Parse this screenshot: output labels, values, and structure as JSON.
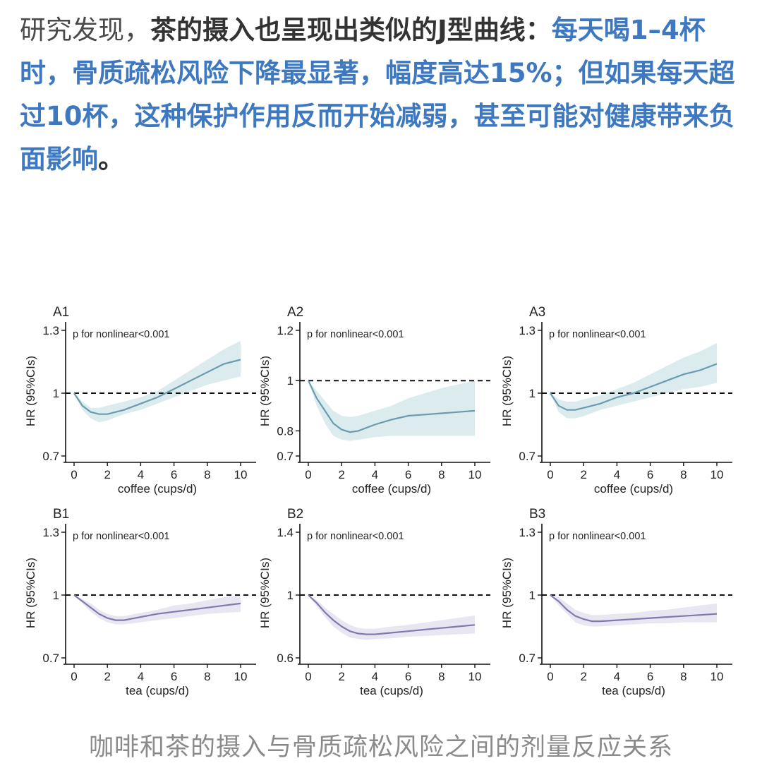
{
  "article": {
    "segments": [
      {
        "text": "研究发现，",
        "style": "normal"
      },
      {
        "text": "茶的摄入也呈现出类似的J型曲线：",
        "style": "bold"
      },
      {
        "text": "每天喝1–4杯时，骨质疏松风险下降最显著，幅度高达15%；但如果每天超过10杯，这种保护作用反而开始减弱，甚至可能对健康带来负面影响",
        "style": "blue"
      },
      {
        "text": "。",
        "style": "bold"
      }
    ]
  },
  "caption": "咖啡和茶的摄入与骨质疏松风险之间的剂量反应关系",
  "colors": {
    "coffee_line": "#6a9bb0",
    "coffee_band": "#dcecee",
    "tea_line": "#8377ad",
    "tea_band": "#e8e6f1",
    "text_blue": "#3d78c1"
  },
  "chart_data": [
    {
      "panel_label": "A1",
      "type": "line",
      "annotation": "p for nonlinear<0.001",
      "xlabel": "coffee (cups/d)",
      "ylabel": "HR (95%CIs)",
      "xticks": [
        "0",
        "2",
        "4",
        "6",
        "8",
        "10"
      ],
      "yticks": [
        "0.7",
        "1",
        "1.3"
      ],
      "xlim": [
        0,
        10
      ],
      "ylim": [
        0.7,
        1.3
      ],
      "reference_line": 1,
      "x": [
        0,
        0.5,
        1,
        1.5,
        2,
        3,
        4,
        5,
        6,
        7,
        8,
        9,
        10
      ],
      "series": [
        {
          "values": [
            1.0,
            0.94,
            0.91,
            0.9,
            0.9,
            0.92,
            0.95,
            0.98,
            1.02,
            1.06,
            1.1,
            1.14,
            1.16
          ],
          "lower": [
            1.0,
            0.92,
            0.88,
            0.86,
            0.87,
            0.9,
            0.92,
            0.95,
            0.98,
            1.01,
            1.04,
            1.06,
            1.08
          ],
          "upper": [
            1.0,
            0.96,
            0.93,
            0.93,
            0.94,
            0.96,
            0.98,
            1.01,
            1.06,
            1.11,
            1.16,
            1.21,
            1.25
          ]
        }
      ]
    },
    {
      "panel_label": "A2",
      "type": "line",
      "annotation": "p for nonlinear<0.001",
      "xlabel": "coffee (cups/d)",
      "ylabel": "HR (95%CIs)",
      "xticks": [
        "0",
        "2",
        "4",
        "6",
        "8",
        "10"
      ],
      "yticks": [
        "0.7",
        "0.8",
        "1",
        "1.2"
      ],
      "xlim": [
        0,
        10
      ],
      "ylim": [
        0.7,
        1.2
      ],
      "reference_line": 1,
      "x": [
        0,
        0.5,
        1,
        1.5,
        2,
        2.5,
        3,
        4,
        5,
        6,
        7,
        8,
        9,
        10
      ],
      "series": [
        {
          "values": [
            1.0,
            0.93,
            0.88,
            0.83,
            0.805,
            0.795,
            0.8,
            0.825,
            0.845,
            0.86,
            0.865,
            0.87,
            0.875,
            0.88
          ],
          "lower": [
            1.0,
            0.9,
            0.83,
            0.78,
            0.765,
            0.76,
            0.765,
            0.775,
            0.78,
            0.78,
            0.78,
            0.78,
            0.78,
            0.78
          ],
          "upper": [
            1.0,
            0.96,
            0.92,
            0.88,
            0.86,
            0.855,
            0.86,
            0.88,
            0.9,
            0.93,
            0.95,
            0.97,
            0.985,
            1.0
          ]
        }
      ]
    },
    {
      "panel_label": "A3",
      "type": "line",
      "annotation": "p for nonlinear<0.001",
      "xlabel": "coffee (cups/d)",
      "ylabel": "HR (95%CIs)",
      "xticks": [
        "0",
        "2",
        "4",
        "6",
        "8",
        "10"
      ],
      "yticks": [
        "0.7",
        "1",
        "1.3"
      ],
      "xlim": [
        0,
        10
      ],
      "ylim": [
        0.7,
        1.3
      ],
      "reference_line": 1,
      "x": [
        0,
        0.5,
        1,
        1.5,
        2,
        3,
        4,
        5,
        6,
        7,
        8,
        9,
        10
      ],
      "series": [
        {
          "values": [
            1.0,
            0.94,
            0.92,
            0.92,
            0.93,
            0.95,
            0.98,
            1.0,
            1.03,
            1.06,
            1.09,
            1.11,
            1.14
          ],
          "lower": [
            1.0,
            0.91,
            0.88,
            0.88,
            0.89,
            0.92,
            0.94,
            0.96,
            0.98,
            1.0,
            1.02,
            1.03,
            1.05
          ],
          "upper": [
            1.0,
            0.97,
            0.96,
            0.96,
            0.97,
            0.99,
            1.02,
            1.05,
            1.09,
            1.13,
            1.17,
            1.2,
            1.24
          ]
        }
      ]
    },
    {
      "panel_label": "B1",
      "type": "line",
      "annotation": "p for nonlinear<0.001",
      "xlabel": "tea (cups/d)",
      "ylabel": "HR (95%CIs)",
      "xticks": [
        "0",
        "2",
        "4",
        "6",
        "8",
        "10"
      ],
      "yticks": [
        "0.7",
        "1",
        "1.3"
      ],
      "xlim": [
        0,
        10
      ],
      "ylim": [
        0.7,
        1.3
      ],
      "reference_line": 1,
      "x": [
        0,
        0.5,
        1,
        1.5,
        2,
        2.5,
        3,
        4,
        5,
        6,
        7,
        8,
        9,
        10
      ],
      "series": [
        {
          "values": [
            1.0,
            0.97,
            0.94,
            0.91,
            0.89,
            0.88,
            0.88,
            0.895,
            0.91,
            0.92,
            0.93,
            0.94,
            0.95,
            0.96
          ],
          "lower": [
            1.0,
            0.96,
            0.92,
            0.89,
            0.87,
            0.86,
            0.86,
            0.87,
            0.88,
            0.89,
            0.9,
            0.91,
            0.915,
            0.92
          ],
          "upper": [
            1.0,
            0.98,
            0.96,
            0.93,
            0.91,
            0.9,
            0.9,
            0.915,
            0.93,
            0.95,
            0.96,
            0.975,
            0.99,
            1.0
          ]
        }
      ]
    },
    {
      "panel_label": "B2",
      "type": "line",
      "annotation": "p for nonlinear<0.001",
      "xlabel": "tea (cups/d)",
      "ylabel": "HR (95%CIs)",
      "xticks": [
        "0",
        "2",
        "4",
        "6",
        "8",
        "10"
      ],
      "yticks": [
        "0.6",
        "1",
        "1.4"
      ],
      "xlim": [
        0,
        10
      ],
      "ylim": [
        0.6,
        1.4
      ],
      "reference_line": 1,
      "x": [
        0,
        0.5,
        1,
        1.5,
        2,
        2.5,
        3,
        3.5,
        4,
        5,
        6,
        7,
        8,
        9,
        10
      ],
      "series": [
        {
          "values": [
            1.0,
            0.95,
            0.89,
            0.84,
            0.8,
            0.77,
            0.755,
            0.75,
            0.75,
            0.76,
            0.77,
            0.78,
            0.79,
            0.8,
            0.81
          ],
          "lower": [
            1.0,
            0.93,
            0.86,
            0.8,
            0.76,
            0.73,
            0.72,
            0.715,
            0.72,
            0.725,
            0.735,
            0.74,
            0.745,
            0.75,
            0.755
          ],
          "upper": [
            1.0,
            0.97,
            0.92,
            0.88,
            0.84,
            0.81,
            0.79,
            0.785,
            0.785,
            0.8,
            0.81,
            0.825,
            0.84,
            0.855,
            0.87
          ]
        }
      ]
    },
    {
      "panel_label": "B3",
      "type": "line",
      "annotation": "p for nonlinear<0.001",
      "xlabel": "tea (cups/d)",
      "ylabel": "HR (95%CIs)",
      "xticks": [
        "0",
        "2",
        "4",
        "6",
        "8",
        "10"
      ],
      "yticks": [
        "0.7",
        "1",
        "1.3"
      ],
      "xlim": [
        0,
        10
      ],
      "ylim": [
        0.7,
        1.3
      ],
      "reference_line": 1,
      "x": [
        0,
        0.5,
        1,
        1.5,
        2,
        2.5,
        3,
        4,
        5,
        6,
        7,
        8,
        9,
        10
      ],
      "series": [
        {
          "values": [
            1.0,
            0.97,
            0.93,
            0.9,
            0.885,
            0.875,
            0.875,
            0.88,
            0.885,
            0.89,
            0.895,
            0.9,
            0.905,
            0.91
          ],
          "lower": [
            1.0,
            0.95,
            0.91,
            0.87,
            0.855,
            0.85,
            0.85,
            0.855,
            0.86,
            0.865,
            0.865,
            0.87,
            0.87,
            0.87
          ],
          "upper": [
            1.0,
            0.99,
            0.96,
            0.93,
            0.915,
            0.905,
            0.905,
            0.91,
            0.915,
            0.925,
            0.93,
            0.94,
            0.95,
            0.96
          ]
        }
      ]
    }
  ]
}
